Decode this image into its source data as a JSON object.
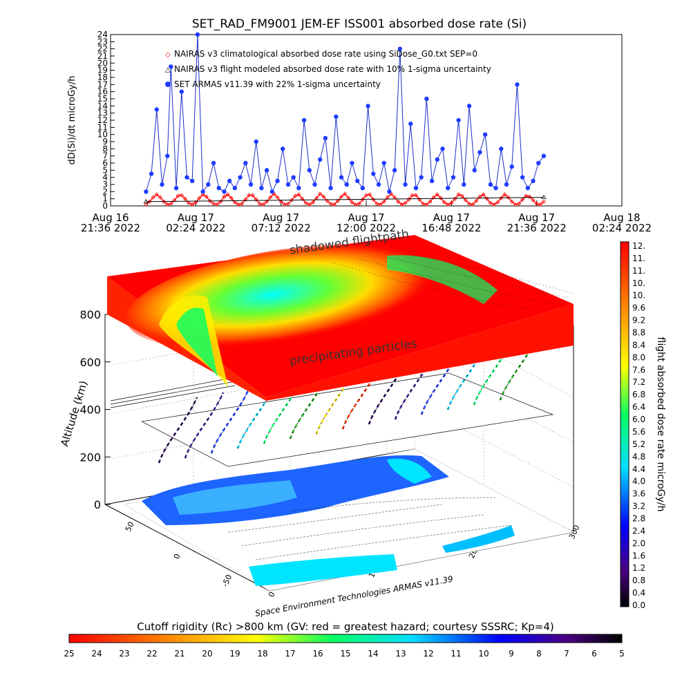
{
  "chart_data": [
    {
      "type": "line",
      "title": "SET_RAD_FM9001  JEM-EF ISS001 absorbed dose rate (Si)",
      "ylabel": "dD(Si)/dt microGy/h",
      "ylim": [
        0,
        24
      ],
      "yticks": [
        "0",
        "1",
        "2",
        "3",
        "4",
        "5",
        "6",
        "7",
        "8",
        "9",
        "10",
        "11",
        "12",
        "13",
        "14",
        "15",
        "16",
        "17",
        "18",
        "19",
        "20",
        "21",
        "22",
        "23",
        "24"
      ],
      "xticks": [
        {
          "l1": "Aug 16",
          "l2": "21:36 2022"
        },
        {
          "l1": "Aug 17",
          "l2": "02:24 2022"
        },
        {
          "l1": "Aug 17",
          "l2": "07:12 2022"
        },
        {
          "l1": "Aug 17",
          "l2": "12:00 2022"
        },
        {
          "l1": "Aug 17",
          "l2": "16:48 2022"
        },
        {
          "l1": "Aug 17",
          "l2": "21:36 2022"
        },
        {
          "l1": "Aug 18",
          "l2": "02:24 2022"
        }
      ],
      "x_hours_start": 0,
      "x_hours_end": 28.8,
      "legend_position": "top-left",
      "series": [
        {
          "name": "NAIRAS v3 climatological absorbed dose rate using SiDose_G0.txt SEP=0",
          "marker": "diamond",
          "color": "#ff0000",
          "x": [
            2.0,
            2.2,
            2.4,
            2.6,
            2.8,
            3.0,
            3.2,
            3.4,
            3.6,
            3.8,
            4.0,
            4.2,
            4.4,
            4.6,
            4.8,
            5.0,
            5.2,
            5.4,
            5.6,
            5.8,
            6.0,
            6.2,
            6.4,
            6.6,
            6.8,
            7.0,
            7.2,
            7.4,
            7.6,
            7.8,
            8.0,
            8.2,
            8.4,
            8.6,
            8.8,
            9.0,
            9.2,
            9.4,
            9.6,
            9.8,
            10.0,
            10.2,
            10.4,
            10.6,
            10.8,
            11.0,
            11.2,
            11.4,
            11.6,
            11.8,
            12.0,
            12.2,
            12.4,
            12.6,
            12.8,
            13.0,
            13.2,
            13.4,
            13.6,
            13.8,
            14.0,
            14.2,
            14.4,
            14.6,
            14.8,
            15.0,
            15.2,
            15.4,
            15.6,
            15.8,
            16.0,
            16.2,
            16.4,
            16.6,
            16.8,
            17.0,
            17.2,
            17.4,
            17.6,
            17.8,
            18.0,
            18.2,
            18.4,
            18.6,
            18.8,
            19.0,
            19.2,
            19.4,
            19.6,
            19.8,
            20.0,
            20.2,
            20.4,
            20.6,
            20.8,
            21.0,
            21.2,
            21.4,
            21.6,
            21.8,
            22.0,
            22.2,
            22.4,
            22.6,
            22.8,
            23.0,
            23.2,
            23.4,
            23.6,
            23.8,
            24.0,
            24.2,
            24.4
          ],
          "y": [
            0.2,
            0.6,
            1.2,
            1.6,
            1.2,
            0.6,
            0.2,
            0.3,
            0.8,
            1.4,
            1.5,
            1.0,
            0.4,
            0.2,
            0.5,
            1.1,
            1.6,
            1.3,
            0.7,
            0.3,
            0.2,
            0.6,
            1.3,
            1.6,
            1.1,
            0.5,
            0.2,
            0.3,
            0.9,
            1.5,
            1.5,
            0.9,
            0.3,
            0.2,
            0.6,
            1.2,
            1.7,
            1.2,
            0.6,
            0.2,
            0.3,
            0.8,
            1.4,
            1.6,
            1.0,
            0.4,
            0.2,
            0.5,
            1.1,
            1.7,
            1.3,
            0.7,
            0.3,
            0.2,
            0.7,
            1.3,
            1.7,
            1.1,
            0.5,
            0.2,
            0.3,
            0.9,
            1.5,
            1.6,
            0.9,
            0.3,
            0.2,
            0.6,
            1.2,
            1.7,
            1.2,
            0.6,
            0.2,
            0.4,
            0.9,
            1.5,
            1.5,
            0.9,
            0.3,
            0.2,
            0.6,
            1.2,
            1.6,
            1.1,
            0.5,
            0.2,
            0.4,
            1.0,
            1.6,
            1.4,
            0.8,
            0.3,
            0.2,
            0.7,
            1.3,
            1.6,
            1.0,
            0.4,
            0.2,
            0.5,
            1.1,
            1.6,
            1.2,
            0.6,
            0.2,
            0.3,
            0.9,
            1.4,
            1.3,
            0.8,
            0.3,
            0.2,
            0.6
          ]
        },
        {
          "name": "NAIRAS v3 flight modeled absorbed dose rate with 10% 1-sigma uncertainty",
          "marker": "triangle",
          "color": "#000000",
          "x": [
            2.0,
            24.4
          ],
          "y": [
            0.6,
            1.2
          ]
        },
        {
          "name": "SET ARMAS v11.39 with 22% 1-sigma uncertainty",
          "marker": "circle",
          "color": "#0000ff",
          "x": [
            2.0,
            2.3,
            2.6,
            2.9,
            3.2,
            3.4,
            3.7,
            4.0,
            4.3,
            4.6,
            4.9,
            5.2,
            5.5,
            5.8,
            6.1,
            6.4,
            6.7,
            7.0,
            7.3,
            7.6,
            7.9,
            8.2,
            8.5,
            8.8,
            9.1,
            9.4,
            9.7,
            10.0,
            10.3,
            10.6,
            10.9,
            11.2,
            11.5,
            11.8,
            12.1,
            12.4,
            12.7,
            13.0,
            13.3,
            13.6,
            13.9,
            14.2,
            14.5,
            14.8,
            15.1,
            15.4,
            15.7,
            16.0,
            16.3,
            16.6,
            16.9,
            17.2,
            17.5,
            17.8,
            18.1,
            18.4,
            18.7,
            19.0,
            19.3,
            19.6,
            19.9,
            20.2,
            20.5,
            20.8,
            21.1,
            21.4,
            21.7,
            22.0,
            22.3,
            22.6,
            22.9,
            23.2,
            23.5,
            23.8,
            24.1,
            24.4
          ],
          "y": [
            2.0,
            4.5,
            13.5,
            3.0,
            7.0,
            19.5,
            2.5,
            16.0,
            4.0,
            3.5,
            24.0,
            2.0,
            3.0,
            6.0,
            2.5,
            2.0,
            3.5,
            2.5,
            4.0,
            6.0,
            3.0,
            9.0,
            2.5,
            5.0,
            2.0,
            3.5,
            8.0,
            3.0,
            4.0,
            2.5,
            12.0,
            5.0,
            3.0,
            6.5,
            9.5,
            2.5,
            12.5,
            4.0,
            3.0,
            6.0,
            3.5,
            2.5,
            14.0,
            4.5,
            3.0,
            6.0,
            2.0,
            5.0,
            22.0,
            3.0,
            11.5,
            2.5,
            4.0,
            15.0,
            3.5,
            6.5,
            8.0,
            2.5,
            4.0,
            12.0,
            3.0,
            14.0,
            5.0,
            7.5,
            10.0,
            3.0,
            2.5,
            8.0,
            3.0,
            5.5,
            17.0,
            4.0,
            2.5,
            3.5,
            6.0,
            7.0
          ]
        }
      ]
    },
    {
      "type": "heatmap",
      "zlabel": "Altitude (km)",
      "zticks": [
        "0",
        "200",
        "400",
        "600",
        "800"
      ],
      "lat_ticks": [
        "50",
        "0",
        "-50"
      ],
      "lon_ticks": [
        "0",
        "100",
        "200",
        "300"
      ],
      "annotations": [
        "shadowed flightpath",
        "precipitating particles",
        "Space Environment Technologies ARMAS v11.39"
      ],
      "colorbar_right": {
        "label": "flight absorbed dose rate microGy/h",
        "ticks": [
          "12.",
          "11.",
          "11.",
          "10.",
          "10.",
          "9.6",
          "9.2",
          "8.8",
          "8.4",
          "8.0",
          "7.6",
          "7.2",
          "6.8",
          "6.4",
          "6.0",
          "5.6",
          "5.2",
          "4.8",
          "4.4",
          "4.0",
          "3.6",
          "3.2",
          "2.8",
          "2.4",
          "2.0",
          "1.6",
          "1.2",
          "0.8",
          "0.4",
          "0.0"
        ]
      },
      "colorbar_bottom": {
        "label": "Cutoff rigidity (Rc) >800 km (GV: red = greatest hazard; courtesy SSSRC; Kp=4)",
        "ticks": [
          "25",
          "24",
          "23",
          "22",
          "21",
          "20",
          "19",
          "18",
          "17",
          "16",
          "15",
          "14",
          "13",
          "12",
          "11",
          "10",
          "9",
          "8",
          "7",
          "6",
          "5"
        ]
      }
    }
  ]
}
